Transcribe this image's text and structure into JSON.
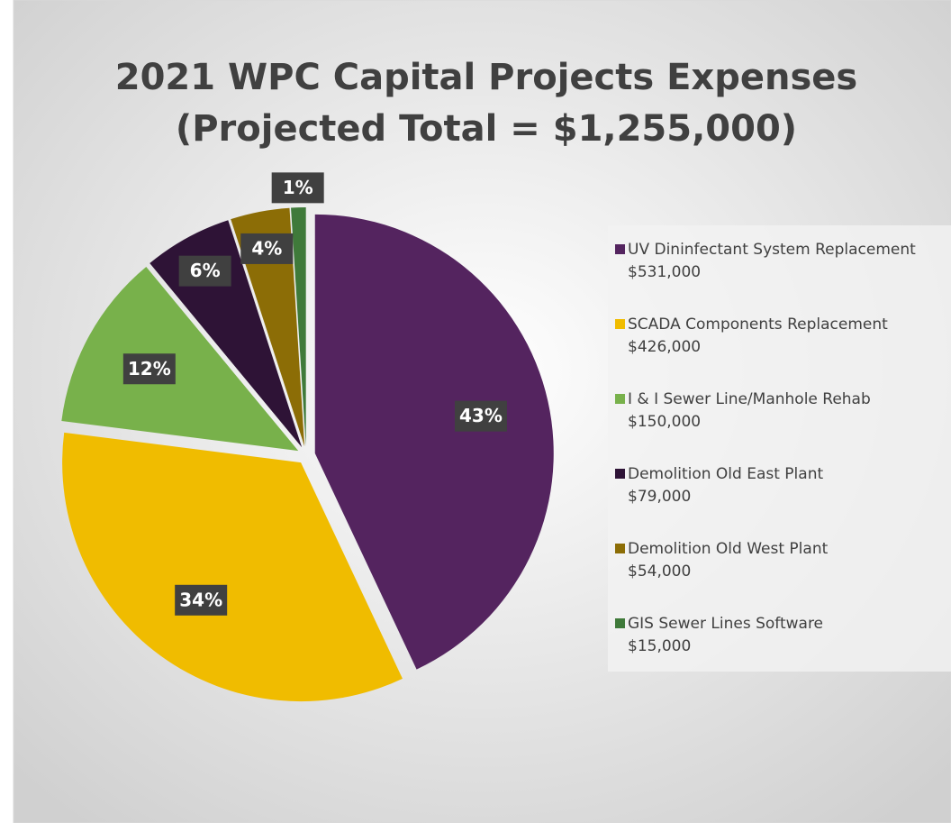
{
  "chart_data": {
    "type": "pie",
    "title": [
      "2021 WPC Capital Projects Expenses",
      "(Projected Total = $1,255,000)"
    ],
    "categories": [
      "UV Dininfectant System Replacement",
      "SCADA Components Replacement",
      "I & I Sewer Line/Manhole Rehab",
      "Demolition Old East Plant",
      "Demolition Old West Plant",
      "GIS Sewer Lines Software"
    ],
    "legend_amounts": [
      "$531,000",
      "$426,000",
      "$150,000",
      "$79,000",
      "$54,000",
      "$15,000"
    ],
    "values": [
      43,
      34,
      12,
      6,
      4,
      1
    ],
    "value_labels": [
      "43%",
      "34%",
      "12%",
      "6%",
      "4%",
      "1%"
    ],
    "colors": [
      "#54245f",
      "#f0bc00",
      "#78b14b",
      "#2e1336",
      "#8c6d06",
      "#3f7a3a"
    ],
    "legend": "right"
  }
}
